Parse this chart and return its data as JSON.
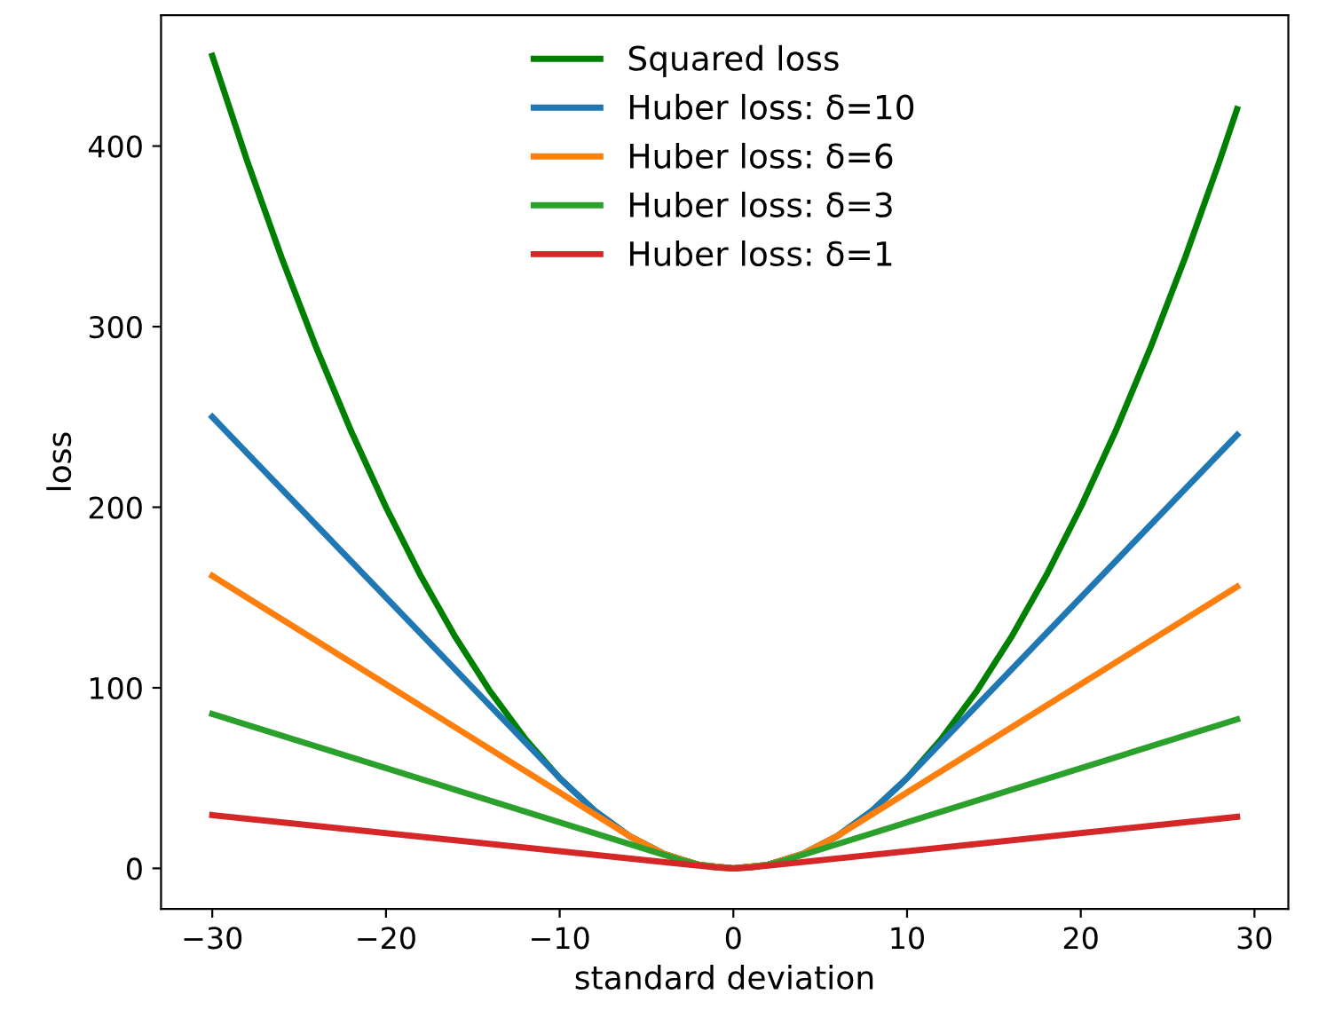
{
  "chart_data": {
    "type": "line",
    "xlabel": "standard deviation",
    "ylabel": "loss",
    "xlim": [
      -32.95,
      31.95
    ],
    "xticks": [
      {
        "value": -30,
        "label": "−30"
      },
      {
        "value": -20,
        "label": "−20"
      },
      {
        "value": -10,
        "label": "−10"
      },
      0,
      10,
      20,
      30
    ],
    "ylim": [
      -22.5,
      472.5
    ],
    "yticks": [
      0,
      100,
      200,
      300,
      400
    ],
    "grid": false,
    "legend": "top",
    "marker": "none",
    "line_style": "solid",
    "series": [
      {
        "name": "Squared loss",
        "color": "#008000",
        "x": [
          -30,
          -28,
          -26,
          -24,
          -22,
          -20,
          -18,
          -16,
          -14,
          -12,
          -10,
          -8,
          -6,
          -4,
          -2,
          0,
          2,
          4,
          6,
          8,
          10,
          12,
          14,
          16,
          18,
          20,
          22,
          24,
          26,
          28,
          29
        ],
        "values": [
          450,
          392,
          338,
          288,
          242,
          200,
          162,
          128,
          98,
          72,
          50,
          32,
          18,
          8,
          2,
          0,
          2,
          8,
          18,
          32,
          50,
          72,
          98,
          128,
          162,
          200,
          242,
          288,
          338,
          392,
          420.5
        ]
      },
      {
        "name": "Huber loss: δ=10",
        "color": "#1f77b4",
        "x": [
          -30,
          -10,
          -8,
          -6,
          -4,
          -2,
          0,
          2,
          4,
          6,
          8,
          10,
          29
        ],
        "values": [
          250,
          50,
          32,
          18,
          8,
          2,
          0,
          2,
          8,
          18,
          32,
          50,
          240
        ]
      },
      {
        "name": "Huber loss: δ=6",
        "color": "#ff7f0e",
        "x": [
          -30,
          -6,
          -4,
          -2,
          0,
          2,
          4,
          6,
          29
        ],
        "values": [
          162,
          18,
          8,
          2,
          0,
          2,
          8,
          18,
          156
        ]
      },
      {
        "name": "Huber loss: δ=3",
        "color": "#2ca02c",
        "x": [
          -30,
          -3,
          -2,
          -1,
          0,
          1,
          2,
          3,
          29
        ],
        "values": [
          85.5,
          4.5,
          2,
          0.5,
          0,
          0.5,
          2,
          4.5,
          82.5
        ]
      },
      {
        "name": "Huber loss: δ=1",
        "color": "#d62728",
        "x": [
          -30,
          -1,
          0,
          1,
          29
        ],
        "values": [
          29.5,
          0.5,
          0,
          0.5,
          28.5
        ]
      }
    ]
  }
}
